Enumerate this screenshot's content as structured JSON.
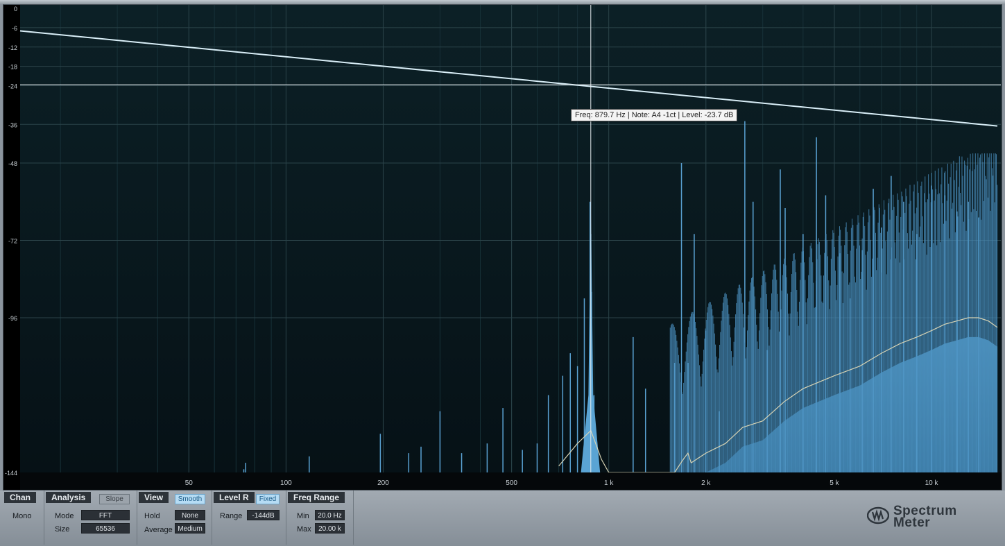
{
  "plugin": {
    "name": "Spectrum Meter",
    "name_line1": "Spectrum",
    "name_line2": "Meter"
  },
  "analyzer": {
    "tooltip": "Freq: 879.7 Hz | Note: A4 -1ct | Level: -23.7 dB",
    "cursor": {
      "freq_hz": 879.7,
      "level_db": -23.7
    }
  },
  "panel": {
    "chan": {
      "title": "Chan",
      "value": "Mono"
    },
    "analysis": {
      "title": "Analysis",
      "slope_label": "Slope",
      "mode_label": "Mode",
      "mode_value": "FFT",
      "size_label": "Size",
      "size_value": "65536"
    },
    "view": {
      "title": "View",
      "smooth_label": "Smooth",
      "hold_label": "Hold",
      "hold_value": "None",
      "average_label": "Average",
      "average_value": "Medium"
    },
    "level": {
      "title": "Level R",
      "fixed_label": "Fixed",
      "range_label": "Range",
      "range_value": "-144dB"
    },
    "freq_range": {
      "title": "Freq Range",
      "min_label": "Min",
      "min_value": "20.0 Hz",
      "max_label": "Max",
      "max_value": "20.00 k"
    }
  },
  "chart_data": {
    "type": "line",
    "title": "",
    "xscale": "log",
    "xlim": [
      15,
      16000
    ],
    "ylim": [
      -144,
      0
    ],
    "grid": true,
    "y_ticks": [
      {
        "value": 0,
        "label": "0"
      },
      {
        "value": -6,
        "label": "-6"
      },
      {
        "value": -12,
        "label": "-12"
      },
      {
        "value": -18,
        "label": "-18"
      },
      {
        "value": -24,
        "label": "-24"
      },
      {
        "value": -36,
        "label": "-36"
      },
      {
        "value": -48,
        "label": "-48"
      },
      {
        "value": -72,
        "label": "-72"
      },
      {
        "value": -96,
        "label": "-96"
      },
      {
        "value": -144,
        "label": "-144"
      }
    ],
    "x_ticks": [
      {
        "value": 50,
        "label": "50"
      },
      {
        "value": 100,
        "label": "100"
      },
      {
        "value": 200,
        "label": "200"
      },
      {
        "value": 500,
        "label": "500"
      },
      {
        "value": 1000,
        "label": "1 k"
      },
      {
        "value": 2000,
        "label": "2 k"
      },
      {
        "value": 5000,
        "label": "5 k"
      },
      {
        "value": 10000,
        "label": "10 k"
      }
    ],
    "slope_line": {
      "name": "Slope",
      "x": [
        15,
        16000
      ],
      "y": [
        -7,
        -36.5
      ]
    },
    "peaks": {
      "name": "Spectrum",
      "x": [
        74,
        75,
        118,
        196,
        240,
        262,
        300,
        350,
        420,
        470,
        540,
        600,
        650,
        720,
        760,
        800,
        840,
        875,
        880,
        885,
        900,
        1190,
        1300,
        1600,
        1680,
        1760,
        1840,
        2000,
        2200,
        2640,
        2800,
        3100,
        3400,
        3520,
        4000,
        4400,
        4700,
        5200,
        5600,
        6100,
        6600,
        7000,
        7500,
        8200,
        9000,
        10000,
        11000,
        12000,
        13000,
        14000
      ],
      "y": [
        -143,
        -141,
        -139,
        -132,
        -138,
        -136,
        -125,
        -138,
        -135,
        -124,
        -137,
        -135,
        -120,
        -114,
        -107,
        -111,
        -90,
        -60,
        -70,
        -88,
        -120,
        -102,
        -118,
        -110,
        -48,
        -110,
        -70,
        -100,
        -125,
        -35,
        -60,
        -106,
        -50,
        -62,
        -70,
        -40,
        -58,
        -76,
        -90,
        -75,
        -56,
        -68,
        -52,
        -60,
        -70,
        -55,
        -58,
        -63,
        -60,
        -65
      ]
    },
    "average_curve": {
      "name": "Average",
      "x": [
        700,
        800,
        880,
        950,
        1000,
        1200,
        1400,
        1600,
        1700,
        1760,
        1800,
        2000,
        2300,
        2600,
        3000,
        3500,
        4000,
        5000,
        6000,
        7000,
        8000,
        9000,
        10000,
        11000,
        12000,
        13000,
        14000,
        15000,
        16000
      ],
      "y": [
        -142,
        -135,
        -131,
        -140,
        -144,
        -144,
        -144,
        -144,
        -140,
        -138,
        -141,
        -138,
        -135,
        -130,
        -128,
        -122,
        -118,
        -114,
        -111,
        -107,
        -104,
        -102,
        -100,
        -98,
        -97,
        -96,
        -96,
        -97,
        -99
      ]
    }
  }
}
